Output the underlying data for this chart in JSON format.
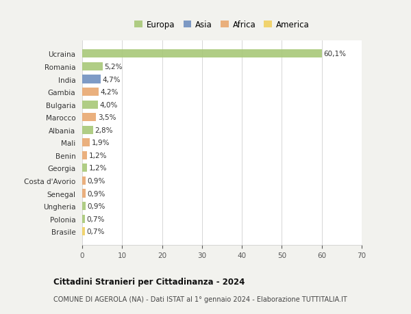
{
  "countries": [
    "Brasile",
    "Polonia",
    "Ungheria",
    "Senegal",
    "Costa d'Avorio",
    "Georgia",
    "Benin",
    "Mali",
    "Albania",
    "Marocco",
    "Bulgaria",
    "Gambia",
    "India",
    "Romania",
    "Ucraina"
  ],
  "values": [
    0.7,
    0.7,
    0.9,
    0.9,
    0.9,
    1.2,
    1.2,
    1.9,
    2.8,
    3.5,
    4.0,
    4.2,
    4.7,
    5.2,
    60.1
  ],
  "labels": [
    "0,7%",
    "0,7%",
    "0,9%",
    "0,9%",
    "0,9%",
    "1,2%",
    "1,2%",
    "1,9%",
    "2,8%",
    "3,5%",
    "4,0%",
    "4,2%",
    "4,7%",
    "5,2%",
    "60,1%"
  ],
  "continents": [
    "America",
    "Europa",
    "Europa",
    "Africa",
    "Africa",
    "Europa",
    "Africa",
    "Africa",
    "Europa",
    "Africa",
    "Europa",
    "Africa",
    "Asia",
    "Europa",
    "Europa"
  ],
  "colors": {
    "Europa": "#a8c878",
    "Asia": "#7090c0",
    "Africa": "#e8a870",
    "America": "#f0d060"
  },
  "title": "Cittadini Stranieri per Cittadinanza - 2024",
  "subtitle": "COMUNE DI AGEROLA (NA) - Dati ISTAT al 1° gennaio 2024 - Elaborazione TUTTITALIA.IT",
  "xlim": [
    0,
    70
  ],
  "xticks": [
    0,
    10,
    20,
    30,
    40,
    50,
    60,
    70
  ],
  "background_color": "#f2f2ee",
  "plot_bg_color": "#ffffff",
  "grid_color": "#d0d0d0",
  "legend_order": [
    "Europa",
    "Asia",
    "Africa",
    "America"
  ]
}
